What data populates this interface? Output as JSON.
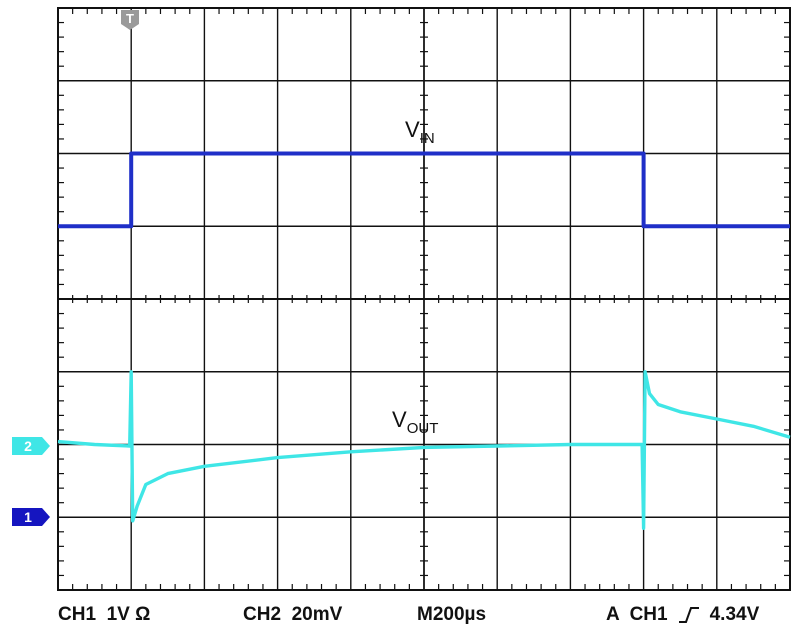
{
  "chart_data": {
    "type": "line",
    "title": "",
    "grid": true,
    "x": {
      "divisions": 10,
      "units_per_division": "200µs"
    },
    "y": {
      "divisions": 8
    },
    "series": [
      {
        "name": "VIN",
        "label_main": "V",
        "label_sub": "IN",
        "channel": "1",
        "color": "#1f2fc8",
        "points": [
          [
            0,
            5.0
          ],
          [
            1.0,
            5.0
          ],
          [
            1.0,
            6.0
          ],
          [
            8.0,
            6.0
          ],
          [
            8.0,
            5.0
          ],
          [
            10.0,
            5.0
          ]
        ]
      },
      {
        "name": "VOUT",
        "label_main": "V",
        "label_sub": "OUT",
        "channel": "2",
        "color": "#3fe6e6",
        "points": [
          [
            0,
            2.04
          ],
          [
            0.5,
            2.0
          ],
          [
            0.98,
            1.98
          ],
          [
            1.0,
            3.0
          ],
          [
            1.02,
            0.95
          ],
          [
            1.08,
            1.15
          ],
          [
            1.2,
            1.45
          ],
          [
            1.5,
            1.6
          ],
          [
            2.0,
            1.7
          ],
          [
            3.0,
            1.82
          ],
          [
            4.0,
            1.9
          ],
          [
            5.0,
            1.96
          ],
          [
            6.0,
            1.98
          ],
          [
            7.0,
            2.0
          ],
          [
            7.98,
            2.0
          ],
          [
            8.0,
            0.85
          ],
          [
            8.02,
            3.0
          ],
          [
            8.08,
            2.7
          ],
          [
            8.2,
            2.55
          ],
          [
            8.5,
            2.45
          ],
          [
            9.0,
            2.35
          ],
          [
            9.5,
            2.25
          ],
          [
            10.0,
            2.1
          ]
        ]
      }
    ]
  },
  "colors": {
    "grid": "#111111",
    "marker_bg": "#1a1aaa",
    "trigger_marker": "#9a9a9a",
    "ch2_marker": "#3fe6e6",
    "ch1_marker": "#1515c0"
  },
  "markers": {
    "trigger": "T",
    "ch1": "1",
    "ch2": "2"
  },
  "status": {
    "ch1": "CH1  1V Ω",
    "ch2": "CH2  20mV",
    "timebase": "M200µs",
    "trigger_prefix": "A  CH1",
    "trigger_level": "4.34V",
    "trigger_edge_icon": "rising-edge-icon"
  }
}
